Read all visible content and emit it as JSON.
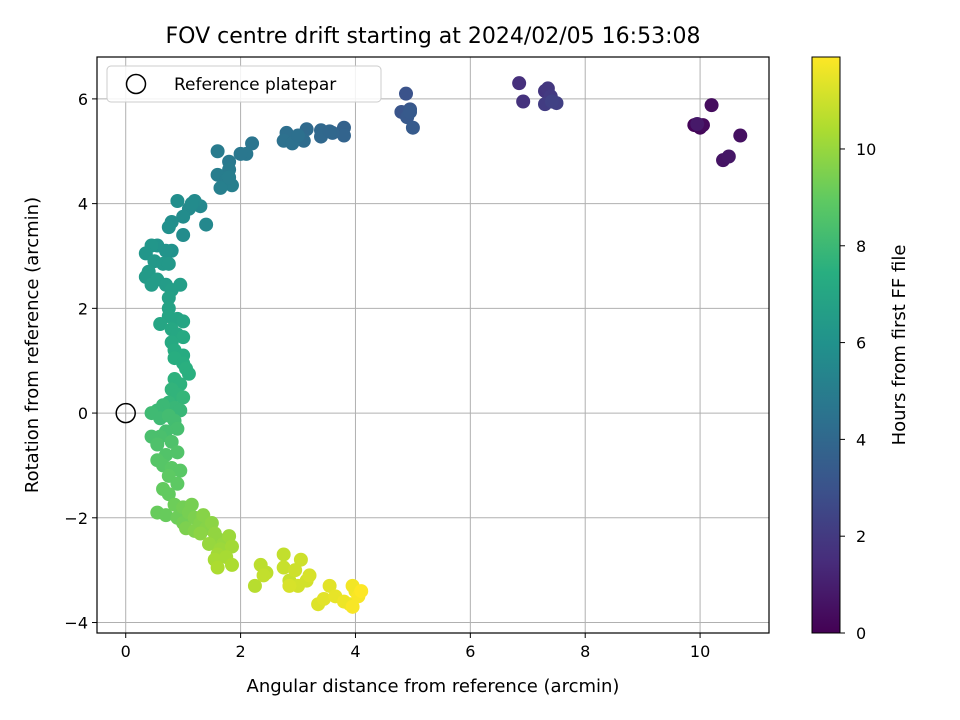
{
  "chart_data": {
    "type": "scatter",
    "title": "FOV centre drift starting at 2024/02/05 16:53:08",
    "xlabel": "Angular distance from reference (arcmin)",
    "ylabel": "Rotation from reference (arcmin)",
    "xlim": [
      -0.5,
      11.2
    ],
    "ylim": [
      -4.2,
      6.8
    ],
    "xticks": [
      0,
      2,
      4,
      6,
      8,
      10
    ],
    "yticks": [
      -4,
      -2,
      0,
      2,
      4,
      6
    ],
    "grid": true,
    "legend": {
      "position": "top-left",
      "entries": [
        "Reference platepar"
      ]
    },
    "reference_point": {
      "x": 0,
      "y": 0
    },
    "colorbar": {
      "label": "Hours from first FF file",
      "colormap": "viridis",
      "range": [
        0,
        11.9
      ],
      "ticks": [
        0,
        2,
        4,
        6,
        8,
        10
      ]
    },
    "points": [
      {
        "x": 9.9,
        "y": 5.5,
        "c": 0.1
      },
      {
        "x": 10.0,
        "y": 5.45,
        "c": 0.2
      },
      {
        "x": 10.05,
        "y": 5.5,
        "c": 0.3
      },
      {
        "x": 10.2,
        "y": 5.88,
        "c": 0.4
      },
      {
        "x": 10.7,
        "y": 5.3,
        "c": 0.5
      },
      {
        "x": 10.4,
        "y": 4.83,
        "c": 0.6
      },
      {
        "x": 10.5,
        "y": 4.9,
        "c": 0.7
      },
      {
        "x": 9.95,
        "y": 5.52,
        "c": 0.8
      },
      {
        "x": 6.85,
        "y": 6.3,
        "c": 1.6
      },
      {
        "x": 6.92,
        "y": 5.95,
        "c": 1.7
      },
      {
        "x": 7.3,
        "y": 6.15,
        "c": 1.8
      },
      {
        "x": 7.35,
        "y": 6.2,
        "c": 1.9
      },
      {
        "x": 7.4,
        "y": 6.05,
        "c": 2.0
      },
      {
        "x": 7.3,
        "y": 5.9,
        "c": 2.1
      },
      {
        "x": 7.5,
        "y": 5.92,
        "c": 2.2
      },
      {
        "x": 7.42,
        "y": 5.95,
        "c": 2.3
      },
      {
        "x": 4.88,
        "y": 6.1,
        "c": 3.0
      },
      {
        "x": 4.8,
        "y": 5.75,
        "c": 3.1
      },
      {
        "x": 4.95,
        "y": 5.8,
        "c": 3.2
      },
      {
        "x": 4.9,
        "y": 5.65,
        "c": 3.3
      },
      {
        "x": 5.0,
        "y": 5.45,
        "c": 3.4
      },
      {
        "x": 4.95,
        "y": 5.75,
        "c": 3.35
      },
      {
        "x": 3.8,
        "y": 5.45,
        "c": 3.7
      },
      {
        "x": 3.8,
        "y": 5.3,
        "c": 3.8
      },
      {
        "x": 3.6,
        "y": 5.35,
        "c": 3.9
      },
      {
        "x": 3.4,
        "y": 5.4,
        "c": 4.0
      },
      {
        "x": 3.4,
        "y": 5.28,
        "c": 4.0
      },
      {
        "x": 3.55,
        "y": 5.38,
        "c": 3.95
      },
      {
        "x": 3.15,
        "y": 5.42,
        "c": 4.1
      },
      {
        "x": 3.1,
        "y": 5.2,
        "c": 4.2
      },
      {
        "x": 2.95,
        "y": 5.25,
        "c": 4.3
      },
      {
        "x": 2.8,
        "y": 5.35,
        "c": 4.3
      },
      {
        "x": 2.75,
        "y": 5.2,
        "c": 4.4
      },
      {
        "x": 2.9,
        "y": 5.15,
        "c": 4.4
      },
      {
        "x": 3.0,
        "y": 5.3,
        "c": 4.35
      },
      {
        "x": 2.2,
        "y": 5.15,
        "c": 4.6
      },
      {
        "x": 2.1,
        "y": 4.95,
        "c": 4.7
      },
      {
        "x": 2.0,
        "y": 4.95,
        "c": 4.7
      },
      {
        "x": 1.8,
        "y": 4.8,
        "c": 4.8
      },
      {
        "x": 1.8,
        "y": 4.65,
        "c": 4.9
      },
      {
        "x": 1.6,
        "y": 5.0,
        "c": 4.9
      },
      {
        "x": 1.6,
        "y": 4.55,
        "c": 5.0
      },
      {
        "x": 1.75,
        "y": 4.45,
        "c": 5.0
      },
      {
        "x": 1.85,
        "y": 4.35,
        "c": 5.1
      },
      {
        "x": 1.65,
        "y": 4.3,
        "c": 5.1
      },
      {
        "x": 1.8,
        "y": 4.5,
        "c": 5.05
      },
      {
        "x": 1.4,
        "y": 3.6,
        "c": 5.5
      },
      {
        "x": 1.3,
        "y": 3.95,
        "c": 5.5
      },
      {
        "x": 1.2,
        "y": 4.05,
        "c": 5.6
      },
      {
        "x": 1.1,
        "y": 3.9,
        "c": 5.6
      },
      {
        "x": 1.0,
        "y": 3.75,
        "c": 5.7
      },
      {
        "x": 1.0,
        "y": 3.4,
        "c": 5.7
      },
      {
        "x": 0.9,
        "y": 4.05,
        "c": 5.8
      },
      {
        "x": 0.8,
        "y": 3.65,
        "c": 5.8
      },
      {
        "x": 0.75,
        "y": 3.55,
        "c": 5.9
      },
      {
        "x": 1.15,
        "y": 4.0,
        "c": 5.65
      },
      {
        "x": 0.8,
        "y": 3.1,
        "c": 6.0
      },
      {
        "x": 0.7,
        "y": 3.1,
        "c": 6.1
      },
      {
        "x": 0.55,
        "y": 3.2,
        "c": 6.1
      },
      {
        "x": 0.45,
        "y": 3.2,
        "c": 6.2
      },
      {
        "x": 0.35,
        "y": 3.05,
        "c": 6.2
      },
      {
        "x": 0.5,
        "y": 2.9,
        "c": 6.3
      },
      {
        "x": 0.65,
        "y": 2.85,
        "c": 6.3
      },
      {
        "x": 0.75,
        "y": 2.85,
        "c": 6.3
      },
      {
        "x": 0.4,
        "y": 2.7,
        "c": 6.4
      },
      {
        "x": 0.35,
        "y": 2.6,
        "c": 6.4
      },
      {
        "x": 0.55,
        "y": 2.55,
        "c": 6.5
      },
      {
        "x": 0.45,
        "y": 2.45,
        "c": 6.5
      },
      {
        "x": 0.7,
        "y": 2.45,
        "c": 6.5
      },
      {
        "x": 0.95,
        "y": 2.45,
        "c": 6.6
      },
      {
        "x": 0.8,
        "y": 2.35,
        "c": 6.6
      },
      {
        "x": 0.75,
        "y": 2.2,
        "c": 6.7
      },
      {
        "x": 0.75,
        "y": 2.0,
        "c": 6.8
      },
      {
        "x": 0.75,
        "y": 1.85,
        "c": 6.9
      },
      {
        "x": 0.9,
        "y": 1.8,
        "c": 6.9
      },
      {
        "x": 1.0,
        "y": 1.75,
        "c": 7.0
      },
      {
        "x": 0.6,
        "y": 1.7,
        "c": 7.0
      },
      {
        "x": 0.8,
        "y": 1.6,
        "c": 7.1
      },
      {
        "x": 0.9,
        "y": 1.5,
        "c": 7.1
      },
      {
        "x": 1.0,
        "y": 1.45,
        "c": 7.2
      },
      {
        "x": 0.8,
        "y": 1.35,
        "c": 7.2
      },
      {
        "x": 0.85,
        "y": 1.2,
        "c": 7.3
      },
      {
        "x": 1.0,
        "y": 1.1,
        "c": 7.3
      },
      {
        "x": 0.85,
        "y": 1.05,
        "c": 7.4
      },
      {
        "x": 1.0,
        "y": 0.95,
        "c": 7.4
      },
      {
        "x": 1.05,
        "y": 0.85,
        "c": 7.5
      },
      {
        "x": 1.1,
        "y": 0.75,
        "c": 7.5
      },
      {
        "x": 0.85,
        "y": 0.65,
        "c": 7.6
      },
      {
        "x": 0.95,
        "y": 0.55,
        "c": 7.6
      },
      {
        "x": 0.8,
        "y": 0.45,
        "c": 7.7
      },
      {
        "x": 0.9,
        "y": 0.35,
        "c": 7.7
      },
      {
        "x": 1.0,
        "y": 0.3,
        "c": 7.8
      },
      {
        "x": 0.75,
        "y": 0.2,
        "c": 7.8
      },
      {
        "x": 0.85,
        "y": 0.1,
        "c": 7.9
      },
      {
        "x": 0.95,
        "y": 0.05,
        "c": 7.9
      },
      {
        "x": 0.65,
        "y": 0.15,
        "c": 8.0
      },
      {
        "x": 0.55,
        "y": 0.05,
        "c": 8.0
      },
      {
        "x": 0.45,
        "y": 0.0,
        "c": 8.1
      },
      {
        "x": 0.6,
        "y": -0.1,
        "c": 8.1
      },
      {
        "x": 0.75,
        "y": -0.05,
        "c": 8.2
      },
      {
        "x": 0.85,
        "y": -0.15,
        "c": 8.2
      },
      {
        "x": 0.9,
        "y": -0.3,
        "c": 8.3
      },
      {
        "x": 0.7,
        "y": -0.35,
        "c": 8.3
      },
      {
        "x": 0.6,
        "y": -0.45,
        "c": 8.4
      },
      {
        "x": 0.45,
        "y": -0.45,
        "c": 8.4
      },
      {
        "x": 0.55,
        "y": -0.6,
        "c": 8.5
      },
      {
        "x": 0.8,
        "y": -0.55,
        "c": 8.5
      },
      {
        "x": 0.9,
        "y": -0.75,
        "c": 8.6
      },
      {
        "x": 0.7,
        "y": -0.8,
        "c": 8.6
      },
      {
        "x": 0.55,
        "y": -0.9,
        "c": 8.7
      },
      {
        "x": 0.65,
        "y": -1.0,
        "c": 8.7
      },
      {
        "x": 0.8,
        "y": -1.05,
        "c": 8.8
      },
      {
        "x": 0.95,
        "y": -1.1,
        "c": 8.8
      },
      {
        "x": 0.75,
        "y": -1.2,
        "c": 8.9
      },
      {
        "x": 0.9,
        "y": -1.35,
        "c": 8.9
      },
      {
        "x": 0.65,
        "y": -1.45,
        "c": 9.0
      },
      {
        "x": 0.75,
        "y": -1.55,
        "c": 9.0
      },
      {
        "x": 0.55,
        "y": -1.9,
        "c": 9.1
      },
      {
        "x": 0.7,
        "y": -1.95,
        "c": 9.1
      },
      {
        "x": 0.85,
        "y": -1.75,
        "c": 9.2
      },
      {
        "x": 0.9,
        "y": -2.0,
        "c": 9.2
      },
      {
        "x": 1.0,
        "y": -1.8,
        "c": 9.3
      },
      {
        "x": 1.0,
        "y": -2.1,
        "c": 9.3
      },
      {
        "x": 1.1,
        "y": -1.9,
        "c": 9.4
      },
      {
        "x": 1.15,
        "y": -1.75,
        "c": 9.4
      },
      {
        "x": 1.2,
        "y": -2.0,
        "c": 9.5
      },
      {
        "x": 1.05,
        "y": -2.2,
        "c": 9.5
      },
      {
        "x": 1.2,
        "y": -2.25,
        "c": 9.6
      },
      {
        "x": 1.3,
        "y": -2.1,
        "c": 9.6
      },
      {
        "x": 1.35,
        "y": -1.95,
        "c": 9.7
      },
      {
        "x": 1.4,
        "y": -2.2,
        "c": 9.7
      },
      {
        "x": 1.3,
        "y": -2.3,
        "c": 9.8
      },
      {
        "x": 1.5,
        "y": -2.1,
        "c": 9.8
      },
      {
        "x": 1.55,
        "y": -2.3,
        "c": 9.9
      },
      {
        "x": 1.6,
        "y": -2.4,
        "c": 9.9
      },
      {
        "x": 1.45,
        "y": -2.5,
        "c": 10.0
      },
      {
        "x": 1.7,
        "y": -2.5,
        "c": 10.0
      },
      {
        "x": 1.65,
        "y": -2.6,
        "c": 10.1
      },
      {
        "x": 1.8,
        "y": -2.35,
        "c": 10.1
      },
      {
        "x": 1.85,
        "y": -2.55,
        "c": 10.2
      },
      {
        "x": 1.6,
        "y": -2.7,
        "c": 10.2
      },
      {
        "x": 1.75,
        "y": -2.75,
        "c": 10.3
      },
      {
        "x": 1.55,
        "y": -2.8,
        "c": 10.3
      },
      {
        "x": 1.6,
        "y": -2.95,
        "c": 10.4
      },
      {
        "x": 1.85,
        "y": -2.9,
        "c": 10.4
      },
      {
        "x": 2.25,
        "y": -3.3,
        "c": 10.6
      },
      {
        "x": 2.35,
        "y": -2.9,
        "c": 10.7
      },
      {
        "x": 2.45,
        "y": -3.05,
        "c": 10.7
      },
      {
        "x": 2.4,
        "y": -3.1,
        "c": 10.8
      },
      {
        "x": 2.75,
        "y": -2.7,
        "c": 10.8
      },
      {
        "x": 2.75,
        "y": -2.95,
        "c": 10.9
      },
      {
        "x": 2.85,
        "y": -3.2,
        "c": 10.9
      },
      {
        "x": 2.95,
        "y": -3.0,
        "c": 11.0
      },
      {
        "x": 3.05,
        "y": -2.8,
        "c": 11.0
      },
      {
        "x": 3.0,
        "y": -3.3,
        "c": 11.1
      },
      {
        "x": 3.15,
        "y": -3.2,
        "c": 11.1
      },
      {
        "x": 3.2,
        "y": -3.1,
        "c": 11.2
      },
      {
        "x": 2.85,
        "y": -3.3,
        "c": 11.2
      },
      {
        "x": 3.35,
        "y": -3.65,
        "c": 11.3
      },
      {
        "x": 3.45,
        "y": -3.55,
        "c": 11.4
      },
      {
        "x": 3.55,
        "y": -3.3,
        "c": 11.4
      },
      {
        "x": 3.65,
        "y": -3.5,
        "c": 11.5
      },
      {
        "x": 3.8,
        "y": -3.6,
        "c": 11.6
      },
      {
        "x": 3.9,
        "y": -3.65,
        "c": 11.6
      },
      {
        "x": 3.95,
        "y": -3.3,
        "c": 11.7
      },
      {
        "x": 4.0,
        "y": -3.4,
        "c": 11.7
      },
      {
        "x": 4.05,
        "y": -3.5,
        "c": 11.8
      },
      {
        "x": 3.95,
        "y": -3.7,
        "c": 11.8
      },
      {
        "x": 4.1,
        "y": -3.4,
        "c": 11.9
      }
    ]
  }
}
